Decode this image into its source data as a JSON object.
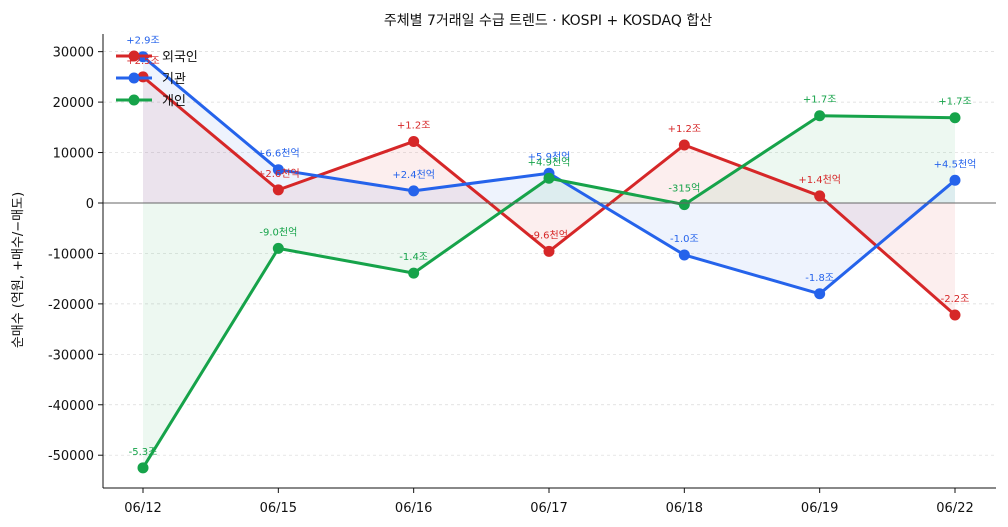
{
  "chart_data": {
    "type": "line",
    "title": "주체별 7거래일 수급 트렌드 · KOSPI + KOSDAQ 합산",
    "xlabel": "",
    "ylabel": "순매수 (억원, +매수/−매도)",
    "categories": [
      "06/12",
      "06/15",
      "06/16",
      "06/17",
      "06/18",
      "06/19",
      "06/22"
    ],
    "yticks": [
      30000,
      20000,
      10000,
      0,
      -10000,
      -20000,
      -30000,
      -40000,
      -50000
    ],
    "ylim": [
      -56500,
      33500
    ],
    "grid": true,
    "legend": "top-left",
    "series": [
      {
        "name": "외국인",
        "color": "#d62728",
        "values": [
          25000,
          2600,
          12200,
          -9600,
          11500,
          1400,
          -22200
        ],
        "labels": [
          "+2.5조",
          "+2.6천억",
          "+1.2조",
          "-9.6천억",
          "+1.2조",
          "+1.4천억",
          "-2.2조"
        ]
      },
      {
        "name": "기관",
        "color": "#2563eb",
        "values": [
          29000,
          6600,
          2400,
          5900,
          -10300,
          -18000,
          4500
        ],
        "labels": [
          "+2.9조",
          "+6.6천억",
          "+2.4천억",
          "+5.9천억",
          "-1.0조",
          "-1.8조",
          "+4.5천억"
        ]
      },
      {
        "name": "개인",
        "color": "#16a34a",
        "values": [
          -52500,
          -9000,
          -13900,
          4900,
          -315,
          17300,
          16900
        ],
        "labels": [
          "-5.3조",
          "-9.0천억",
          "-1.4조",
          "+4.9천억",
          "-315억",
          "+1.7조",
          "+1.7조"
        ]
      }
    ]
  }
}
